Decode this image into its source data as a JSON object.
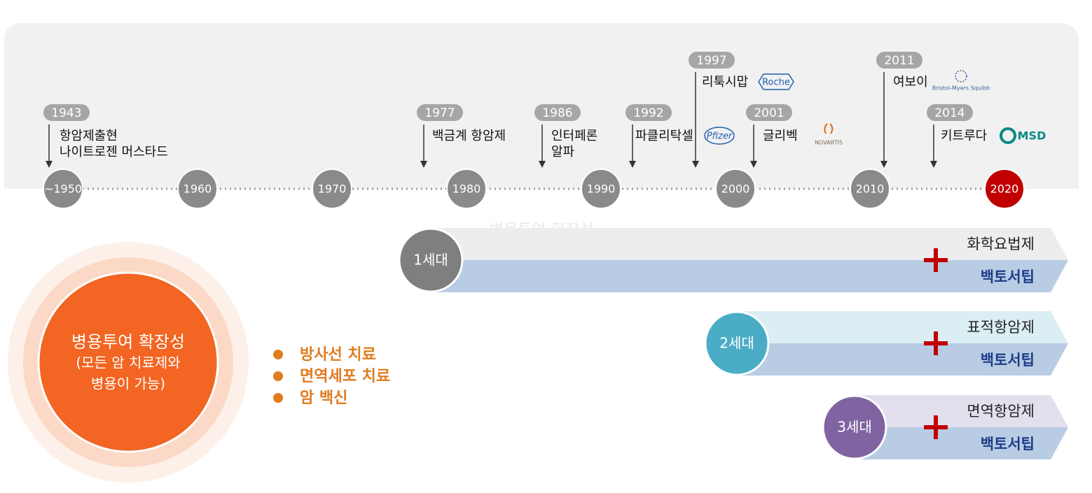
{
  "timeline": {
    "decades": [
      "~1950",
      "1960",
      "1970",
      "1980",
      "1990",
      "2000",
      "2010",
      "2020"
    ],
    "events": [
      {
        "year": "1943",
        "lines": [
          "항암제출현",
          "나이트로젠 머스타드"
        ]
      },
      {
        "year": "1977",
        "lines": [
          "백금계 항암제"
        ]
      },
      {
        "year": "1986",
        "lines": [
          "인터페론",
          "알파"
        ]
      },
      {
        "year": "1992",
        "lines": [
          "파클리탁셀"
        ],
        "logo": "Pfizer"
      },
      {
        "year": "1997",
        "lines": [
          "리툭시맙"
        ],
        "logo": "Roche"
      },
      {
        "year": "2001",
        "lines": [
          "글리벡"
        ],
        "logo": "NOVARTIS"
      },
      {
        "year": "2011",
        "lines": [
          "여보이"
        ],
        "logo": "Bristol-Myers Squibb"
      },
      {
        "year": "2014",
        "lines": [
          "키트루다"
        ],
        "logo": "MSD"
      }
    ]
  },
  "watermark": "병용투여 확장성",
  "generations": [
    {
      "label": "1세대",
      "therapy": "화학요법제",
      "vaccine": "백토서팁"
    },
    {
      "label": "2세대",
      "therapy": "표적항암제",
      "vaccine": "백토서팁"
    },
    {
      "label": "3세대",
      "therapy": "면역항암제",
      "vaccine": "백토서팁"
    }
  ],
  "combination": {
    "lines": [
      "병용투여 확장성",
      "(모든 암 치료제와",
      "병용이 가능)"
    ],
    "items": [
      "방사선 치료",
      "면역세포 치료",
      "암 백신"
    ]
  }
}
